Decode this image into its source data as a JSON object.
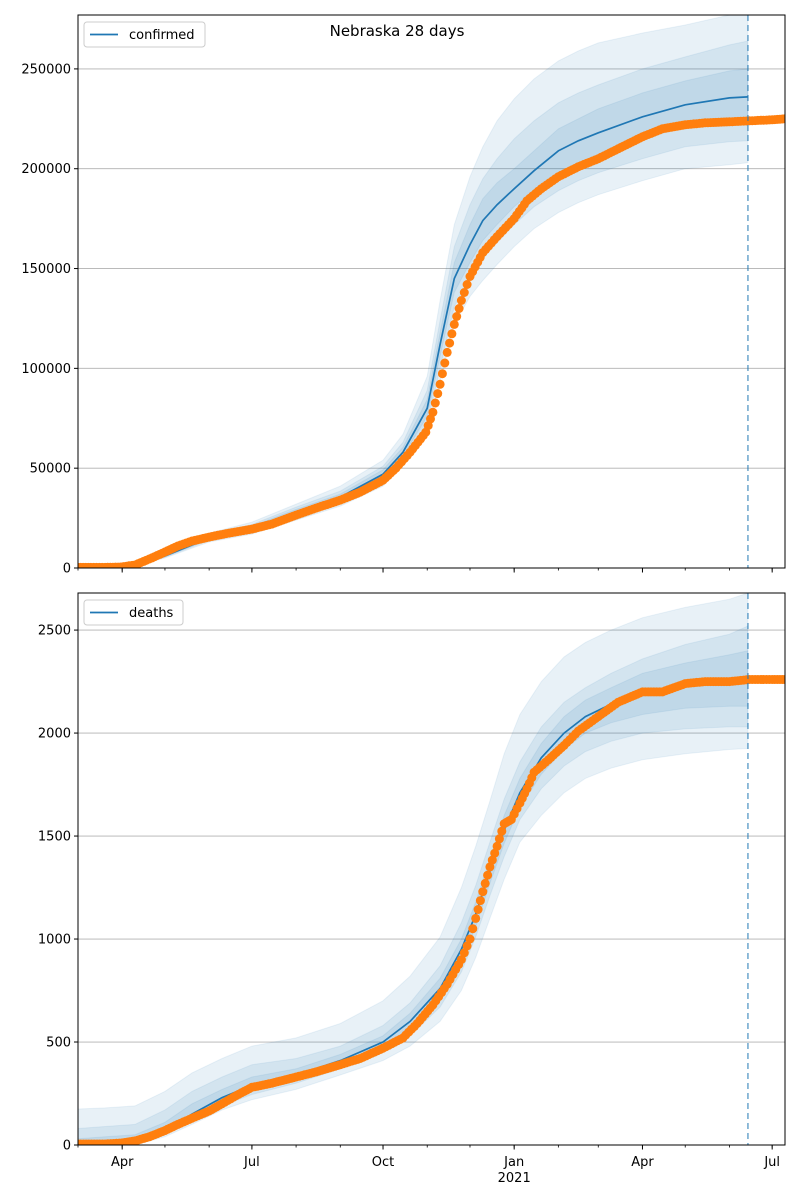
{
  "figure": {
    "suptitle": "Nebraska 28 days"
  },
  "colors": {
    "model_line": "#1f77b4",
    "observed_points": "#ff7f0e",
    "band_fill": "#1f77b4",
    "grid": "#b0b0b0",
    "axes": "#000000"
  },
  "chart_data": [
    {
      "type": "line",
      "name": "confirmed-panel",
      "title": "",
      "xlabel": "",
      "ylabel": "",
      "x_axis": {
        "type": "date",
        "range": [
          "2020-03-01",
          "2021-07-10"
        ],
        "ticks": [
          "2020-04-01",
          "2020-07-01",
          "2020-10-01",
          "2021-01-01",
          "2021-04-01",
          "2021-07-01"
        ],
        "tick_labels": [
          "Apr",
          "Jul",
          "Oct",
          "Jan",
          "Apr",
          "Jul"
        ],
        "year_label": "2021"
      },
      "ylim": [
        0,
        277000
      ],
      "yticks": [
        0,
        50000,
        100000,
        150000,
        200000,
        250000
      ],
      "ytick_labels": [
        "0",
        "50000",
        "100000",
        "150000",
        "200000",
        "250000"
      ],
      "grid": "y",
      "legend": {
        "position": "top-left",
        "entries": [
          "confirmed"
        ]
      },
      "forecast_start": "2021-06-14",
      "model": {
        "name": "confirmed",
        "x": [
          "2020-03-01",
          "2020-03-20",
          "2020-04-10",
          "2020-05-01",
          "2020-06-01",
          "2020-07-01",
          "2020-08-01",
          "2020-09-01",
          "2020-10-01",
          "2020-10-15",
          "2020-11-01",
          "2020-11-10",
          "2020-11-20",
          "2020-12-01",
          "2020-12-10",
          "2020-12-20",
          "2021-01-01",
          "2021-01-15",
          "2021-02-01",
          "2021-02-15",
          "2021-03-01",
          "2021-04-01",
          "2021-05-01",
          "2021-06-01",
          "2021-06-14"
        ],
        "y": [
          500,
          600,
          1200,
          6000,
          15000,
          20000,
          28000,
          35500,
          47000,
          58000,
          80000,
          112000,
          145000,
          162000,
          174000,
          182000,
          190000,
          199000,
          209000,
          214000,
          218000,
          226000,
          232000,
          235500,
          236000
        ]
      },
      "bands": [
        {
          "x": [
            "2020-03-01",
            "2020-03-20",
            "2020-04-10",
            "2020-05-01",
            "2020-06-01",
            "2020-07-01",
            "2020-08-01",
            "2020-09-01",
            "2020-10-01",
            "2020-10-15",
            "2020-11-01",
            "2020-11-10",
            "2020-11-20",
            "2020-12-01",
            "2020-12-10",
            "2020-12-20",
            "2021-01-01",
            "2021-01-15",
            "2021-02-01",
            "2021-02-15",
            "2021-03-01",
            "2021-04-01",
            "2021-05-01",
            "2021-06-01",
            "2021-06-14"
          ],
          "low": [
            300,
            400,
            900,
            5000,
            13000,
            17000,
            24000,
            31000,
            41000,
            51000,
            68000,
            93000,
            122000,
            136000,
            144000,
            152000,
            161000,
            170000,
            178000,
            183000,
            187000,
            194000,
            200000,
            202000,
            203000
          ],
          "high": [
            800,
            900,
            1700,
            7800,
            17500,
            23000,
            32000,
            41000,
            54000,
            67000,
            96000,
            134000,
            172000,
            196000,
            211000,
            224000,
            235000,
            245000,
            254000,
            259000,
            263000,
            268000,
            272000,
            277000,
            278000
          ]
        },
        {
          "x": [
            "2020-03-01",
            "2020-03-20",
            "2020-04-10",
            "2020-05-01",
            "2020-06-01",
            "2020-07-01",
            "2020-08-01",
            "2020-09-01",
            "2020-10-01",
            "2020-10-15",
            "2020-11-01",
            "2020-11-10",
            "2020-11-20",
            "2020-12-01",
            "2020-12-10",
            "2020-12-20",
            "2021-01-01",
            "2021-01-15",
            "2021-02-01",
            "2021-02-15",
            "2021-03-01",
            "2021-04-01",
            "2021-05-01",
            "2021-06-01",
            "2021-06-14"
          ],
          "low": [
            350,
            450,
            1000,
            5400,
            13800,
            18200,
            25500,
            33000,
            43500,
            54000,
            72500,
            100000,
            131000,
            145500,
            155000,
            163000,
            172000,
            181000,
            189000,
            194000,
            198000,
            205000,
            211000,
            213500,
            214000
          ],
          "high": [
            700,
            800,
            1500,
            7000,
            16700,
            21800,
            30500,
            38500,
            51000,
            63000,
            89000,
            124000,
            161000,
            182000,
            195000,
            205000,
            215000,
            224000,
            233000,
            238000,
            242000,
            250000,
            256000,
            262000,
            264000
          ]
        },
        {
          "x": [
            "2020-03-01",
            "2020-03-20",
            "2020-04-10",
            "2020-05-01",
            "2020-06-01",
            "2020-07-01",
            "2020-08-01",
            "2020-09-01",
            "2020-10-01",
            "2020-10-15",
            "2020-11-01",
            "2020-11-10",
            "2020-11-20",
            "2020-12-01",
            "2020-12-10",
            "2020-12-20",
            "2021-01-01",
            "2021-01-15",
            "2021-02-01",
            "2021-02-15",
            "2021-03-01",
            "2021-04-01",
            "2021-05-01",
            "2021-06-01",
            "2021-06-14"
          ],
          "low": [
            400,
            500,
            1100,
            5700,
            14300,
            19000,
            26600,
            34200,
            45000,
            56000,
            76000,
            106000,
            138000,
            153000,
            164000,
            172000,
            181000,
            189500,
            198000,
            203000,
            207000,
            215000,
            221000,
            224000,
            225000
          ],
          "high": [
            600,
            700,
            1350,
            6500,
            15900,
            21000,
            29400,
            37000,
            49200,
            60500,
            84500,
            118000,
            153000,
            172000,
            185000,
            193000,
            200000,
            209000,
            220000,
            225000,
            230000,
            238000,
            244000,
            249000,
            250000
          ]
        }
      ],
      "observed": {
        "x": [
          "2020-03-01",
          "2020-03-10",
          "2020-03-20",
          "2020-03-31",
          "2020-04-10",
          "2020-04-20",
          "2020-05-01",
          "2020-05-10",
          "2020-05-20",
          "2020-06-01",
          "2020-06-15",
          "2020-07-01",
          "2020-07-15",
          "2020-08-01",
          "2020-08-15",
          "2020-09-01",
          "2020-09-15",
          "2020-10-01",
          "2020-10-10",
          "2020-10-20",
          "2020-10-31",
          "2020-11-05",
          "2020-11-10",
          "2020-11-15",
          "2020-11-20",
          "2020-11-25",
          "2020-12-01",
          "2020-12-10",
          "2020-12-20",
          "2021-01-01",
          "2021-01-10",
          "2021-01-20",
          "2021-02-01",
          "2021-02-15",
          "2021-03-01",
          "2021-03-15",
          "2021-04-01",
          "2021-04-15",
          "2021-05-01",
          "2021-05-15",
          "2021-06-01",
          "2021-06-15",
          "2021-07-01",
          "2021-07-10"
        ],
        "y": [
          300,
          300,
          300,
          500,
          1500,
          4500,
          8000,
          11000,
          13500,
          15500,
          17500,
          19500,
          22000,
          26500,
          30000,
          34000,
          38000,
          44000,
          50000,
          58000,
          68000,
          78000,
          92000,
          108000,
          122000,
          134000,
          146000,
          158000,
          166000,
          175000,
          184000,
          190000,
          196000,
          201000,
          205000,
          210000,
          216000,
          220000,
          222000,
          223000,
          223500,
          224000,
          224500,
          225000
        ]
      }
    },
    {
      "type": "line",
      "name": "deaths-panel",
      "title": "",
      "xlabel": "",
      "ylabel": "",
      "x_axis": {
        "type": "date",
        "range": [
          "2020-03-01",
          "2021-07-10"
        ],
        "ticks": [
          "2020-04-01",
          "2020-07-01",
          "2020-10-01",
          "2021-01-01",
          "2021-04-01",
          "2021-07-01"
        ],
        "tick_labels": [
          "Apr",
          "Jul",
          "Oct",
          "Jan",
          "Apr",
          "Jul"
        ],
        "year_label": "2021"
      },
      "ylim": [
        0,
        2680
      ],
      "yticks": [
        0,
        500,
        1000,
        1500,
        2000,
        2500
      ],
      "ytick_labels": [
        "0",
        "500",
        "1000",
        "1500",
        "2000",
        "2500"
      ],
      "grid": "y",
      "legend": {
        "position": "top-left",
        "entries": [
          "deaths"
        ]
      },
      "forecast_start": "2021-06-14",
      "model": {
        "name": "deaths",
        "x": [
          "2020-03-01",
          "2020-03-20",
          "2020-04-10",
          "2020-05-01",
          "2020-05-20",
          "2020-06-10",
          "2020-07-01",
          "2020-08-01",
          "2020-09-01",
          "2020-10-01",
          "2020-10-20",
          "2020-11-10",
          "2020-11-25",
          "2020-12-05",
          "2020-12-15",
          "2020-12-25",
          "2021-01-05",
          "2021-01-20",
          "2021-02-05",
          "2021-02-20",
          "2021-03-10",
          "2021-04-01",
          "2021-05-01",
          "2021-06-01",
          "2021-06-14"
        ],
        "y": [
          5,
          8,
          20,
          70,
          150,
          230,
          290,
          340,
          410,
          500,
          600,
          760,
          950,
          1120,
          1330,
          1530,
          1710,
          1880,
          2000,
          2080,
          2140,
          2190,
          2230,
          2250,
          2250
        ]
      },
      "bands": [
        {
          "x": [
            "2020-03-01",
            "2020-03-20",
            "2020-04-10",
            "2020-05-01",
            "2020-05-20",
            "2020-06-10",
            "2020-07-01",
            "2020-08-01",
            "2020-09-01",
            "2020-10-01",
            "2020-10-20",
            "2020-11-10",
            "2020-11-25",
            "2020-12-05",
            "2020-12-15",
            "2020-12-25",
            "2021-01-05",
            "2021-01-20",
            "2021-02-05",
            "2021-02-20",
            "2021-03-10",
            "2021-04-01",
            "2021-05-01",
            "2021-06-01",
            "2021-06-14"
          ],
          "low": [
            0,
            0,
            0,
            40,
            100,
            170,
            220,
            270,
            340,
            410,
            480,
            600,
            750,
            910,
            1100,
            1290,
            1470,
            1600,
            1710,
            1780,
            1830,
            1870,
            1900,
            1920,
            1925
          ],
          "high": [
            175,
            180,
            190,
            260,
            350,
            420,
            480,
            520,
            590,
            700,
            820,
            1010,
            1250,
            1450,
            1670,
            1900,
            2090,
            2250,
            2370,
            2440,
            2500,
            2560,
            2610,
            2650,
            2680
          ]
        },
        {
          "x": [
            "2020-03-01",
            "2020-03-20",
            "2020-04-10",
            "2020-05-01",
            "2020-05-20",
            "2020-06-10",
            "2020-07-01",
            "2020-08-01",
            "2020-09-01",
            "2020-10-01",
            "2020-10-20",
            "2020-11-10",
            "2020-11-25",
            "2020-12-05",
            "2020-12-15",
            "2020-12-25",
            "2021-01-05",
            "2021-01-20",
            "2021-02-05",
            "2021-02-20",
            "2021-03-10",
            "2021-04-01",
            "2021-05-01",
            "2021-06-01",
            "2021-06-14"
          ],
          "low": [
            0,
            0,
            5,
            50,
            120,
            190,
            245,
            300,
            370,
            450,
            530,
            670,
            840,
            1010,
            1210,
            1400,
            1580,
            1730,
            1840,
            1910,
            1960,
            2000,
            2020,
            2030,
            2030
          ],
          "high": [
            80,
            90,
            100,
            170,
            260,
            330,
            390,
            420,
            480,
            580,
            690,
            870,
            1080,
            1260,
            1470,
            1680,
            1860,
            2030,
            2150,
            2220,
            2290,
            2360,
            2430,
            2480,
            2520
          ]
        },
        {
          "x": [
            "2020-03-01",
            "2020-03-20",
            "2020-04-10",
            "2020-05-01",
            "2020-05-20",
            "2020-06-10",
            "2020-07-01",
            "2020-08-01",
            "2020-09-01",
            "2020-10-01",
            "2020-10-20",
            "2020-11-10",
            "2020-11-25",
            "2020-12-05",
            "2020-12-15",
            "2020-12-25",
            "2021-01-05",
            "2021-01-20",
            "2021-02-05",
            "2021-02-20",
            "2021-03-10",
            "2021-04-01",
            "2021-05-01",
            "2021-06-01",
            "2021-06-14"
          ],
          "low": [
            0,
            2,
            10,
            60,
            135,
            205,
            265,
            320,
            390,
            475,
            560,
            710,
            895,
            1060,
            1270,
            1465,
            1640,
            1800,
            1920,
            2000,
            2050,
            2090,
            2120,
            2130,
            2130
          ],
          "high": [
            30,
            40,
            50,
            110,
            200,
            270,
            330,
            370,
            440,
            530,
            640,
            810,
            1000,
            1180,
            1390,
            1600,
            1780,
            1950,
            2080,
            2160,
            2220,
            2290,
            2340,
            2380,
            2400
          ]
        }
      ],
      "observed": {
        "x": [
          "2020-03-01",
          "2020-03-20",
          "2020-04-01",
          "2020-04-10",
          "2020-04-20",
          "2020-05-01",
          "2020-05-10",
          "2020-05-20",
          "2020-06-01",
          "2020-06-10",
          "2020-06-20",
          "2020-07-01",
          "2020-07-15",
          "2020-08-01",
          "2020-08-15",
          "2020-09-01",
          "2020-09-15",
          "2020-10-01",
          "2020-10-15",
          "2020-10-25",
          "2020-11-05",
          "2020-11-15",
          "2020-11-25",
          "2020-12-01",
          "2020-12-05",
          "2020-12-10",
          "2020-12-15",
          "2020-12-20",
          "2020-12-25",
          "2020-12-30",
          "2021-01-05",
          "2021-01-10",
          "2021-01-15",
          "2021-01-25",
          "2021-02-05",
          "2021-02-15",
          "2021-03-01",
          "2021-03-15",
          "2021-04-01",
          "2021-04-15",
          "2021-05-01",
          "2021-05-15",
          "2021-06-01",
          "2021-06-15",
          "2021-07-01",
          "2021-07-10"
        ],
        "y": [
          5,
          5,
          10,
          20,
          40,
          70,
          100,
          130,
          165,
          200,
          240,
          280,
          300,
          330,
          355,
          390,
          420,
          470,
          520,
          590,
          680,
          780,
          900,
          1000,
          1100,
          1230,
          1350,
          1450,
          1560,
          1580,
          1660,
          1730,
          1810,
          1870,
          1940,
          2010,
          2080,
          2150,
          2200,
          2200,
          2240,
          2250,
          2250,
          2260,
          2260,
          2260
        ]
      }
    }
  ]
}
